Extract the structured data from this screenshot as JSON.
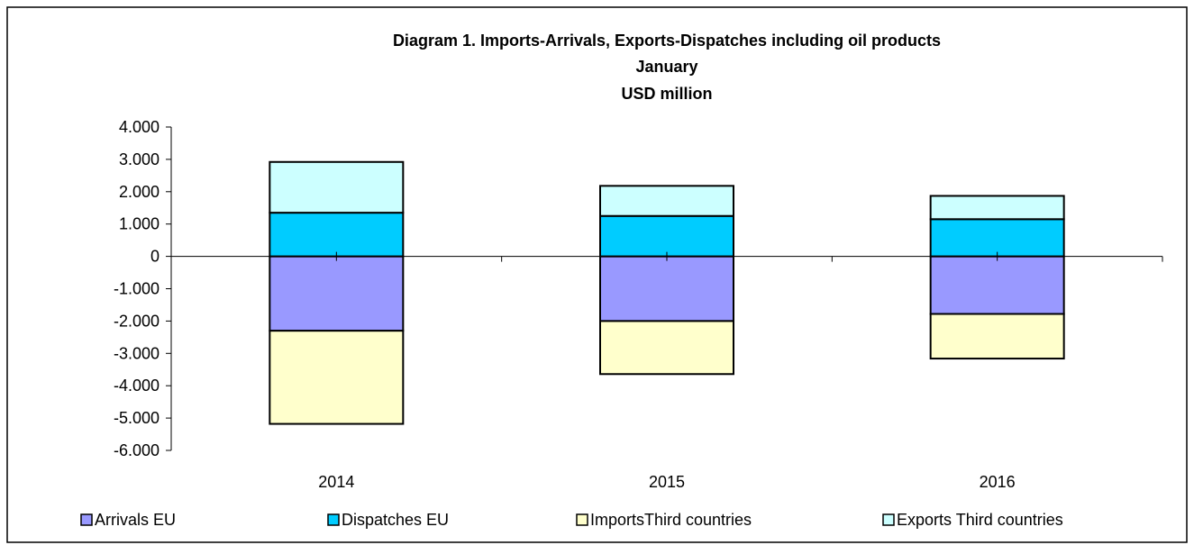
{
  "chart_data": {
    "type": "bar",
    "stacked": true,
    "title_lines": [
      "Diagram 1.  Imports-Arrivals, Exports-Dispatches including oil products",
      "January",
      "USD million"
    ],
    "categories": [
      "2014",
      "2015",
      "2016"
    ],
    "ylim": [
      -6000,
      4000
    ],
    "ytick_values": [
      4000,
      3000,
      2000,
      1000,
      0,
      -1000,
      -2000,
      -3000,
      -4000,
      -5000,
      -6000
    ],
    "ytick_labels": [
      "4.000",
      "3.000",
      "2.000",
      "1.000",
      "0",
      "-1.000",
      "-2.000",
      "-3.000",
      "-4.000",
      "-5.000",
      "-6.000"
    ],
    "legend_position": "bottom",
    "grid": false,
    "series": [
      {
        "name": "Arrivals EU",
        "color": "#9999ff",
        "values": [
          -2300,
          -2000,
          -1780
        ]
      },
      {
        "name": "Dispatches EU",
        "color": "#00ccff",
        "values": [
          1350,
          1250,
          1150
        ]
      },
      {
        "name": "ImportsThird countries",
        "color": "#ffffcc",
        "values": [
          -2880,
          -1640,
          -1380
        ]
      },
      {
        "name": "Exports Third countries",
        "color": "#ccffff",
        "values": [
          1570,
          930,
          720
        ]
      }
    ]
  }
}
